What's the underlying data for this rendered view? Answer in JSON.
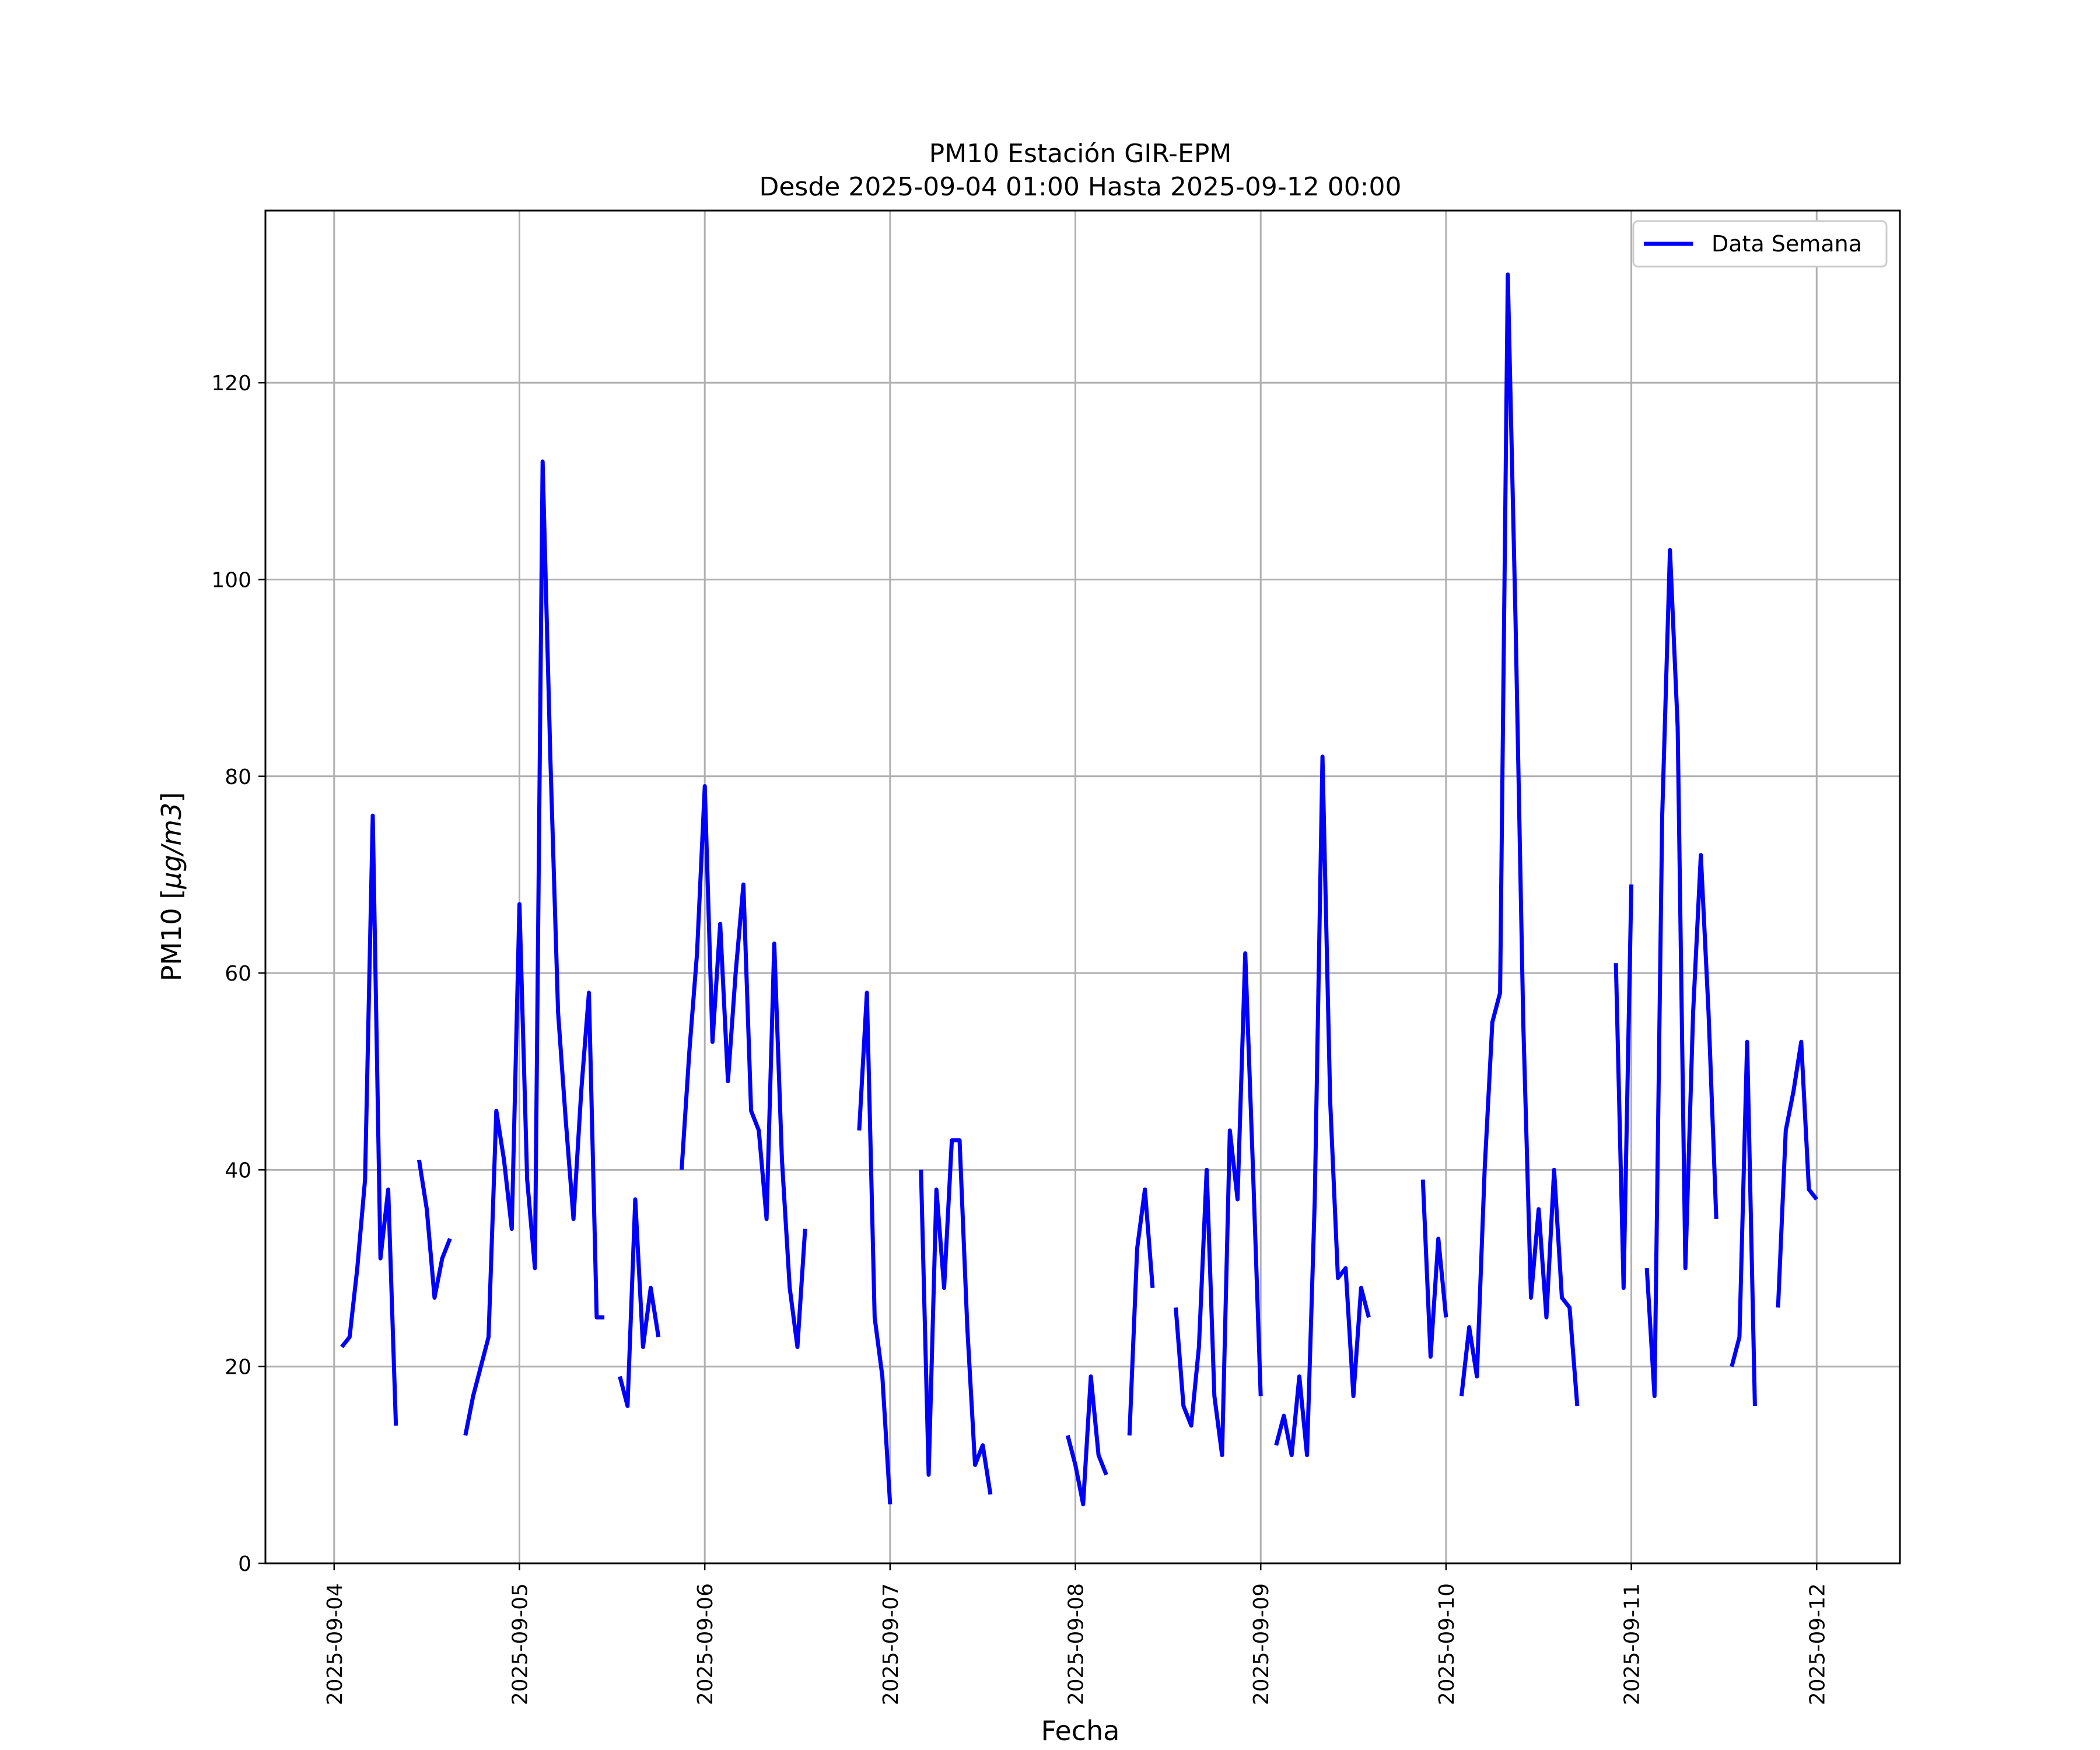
{
  "chart_data": {
    "type": "line",
    "title": "PM10 Estación GIR-EPM",
    "subtitle": "Desde 2025-09-04 01:00 Hasta 2025-09-12 00:00",
    "xlabel": "Fecha",
    "ylabel_main": "PM10 [",
    "ylabel_unit": "μg/m3",
    "ylabel_close": "]",
    "x_ticks": [
      "2025-09-04",
      "2025-09-05",
      "2025-09-06",
      "2025-09-07",
      "2025-09-08",
      "2025-09-09",
      "2025-09-10",
      "2025-09-11",
      "2025-09-12"
    ],
    "y_ticks": [
      0,
      20,
      40,
      60,
      80,
      100,
      120
    ],
    "xlim": [
      "2025-09-03 15:06",
      "2025-09-12 10:47"
    ],
    "ylim": [
      0,
      137.5
    ],
    "grid": true,
    "legend_position": "top-right",
    "series": [
      {
        "name": "Data Semana",
        "color": "#0000ff",
        "segments": [
          [
            [
              "2025-09-04 01:00",
              22
            ],
            [
              "2025-09-04 02:00",
              23
            ],
            [
              "2025-09-04 03:00",
              30
            ],
            [
              "2025-09-04 04:00",
              39
            ],
            [
              "2025-09-04 05:00",
              76
            ],
            [
              "2025-09-04 06:00",
              31
            ],
            [
              "2025-09-04 07:00",
              38
            ],
            [
              "2025-09-04 08:00",
              14
            ]
          ],
          [
            [
              "2025-09-04 11:00",
              41
            ],
            [
              "2025-09-04 12:00",
              36
            ],
            [
              "2025-09-04 13:00",
              27
            ],
            [
              "2025-09-04 14:00",
              31
            ],
            [
              "2025-09-04 15:00",
              33
            ]
          ],
          [
            [
              "2025-09-04 17:00",
              13
            ],
            [
              "2025-09-04 18:00",
              17
            ],
            [
              "2025-09-04 19:00",
              20
            ],
            [
              "2025-09-04 20:00",
              23
            ],
            [
              "2025-09-04 21:00",
              46
            ],
            [
              "2025-09-04 22:00",
              41
            ],
            [
              "2025-09-04 23:00",
              34
            ],
            [
              "2025-09-05 00:00",
              67
            ],
            [
              "2025-09-05 01:00",
              39
            ],
            [
              "2025-09-05 02:00",
              30
            ],
            [
              "2025-09-05 03:00",
              112
            ],
            [
              "2025-09-05 04:00",
              82
            ],
            [
              "2025-09-05 05:00",
              56
            ],
            [
              "2025-09-05 06:00",
              45
            ],
            [
              "2025-09-05 07:00",
              35
            ],
            [
              "2025-09-05 08:00",
              48
            ],
            [
              "2025-09-05 09:00",
              58
            ],
            [
              "2025-09-05 10:00",
              25
            ],
            [
              "2025-09-05 11:00",
              25
            ]
          ],
          [
            [
              "2025-09-05 13:00",
              19
            ],
            [
              "2025-09-05 14:00",
              16
            ],
            [
              "2025-09-05 15:00",
              37
            ],
            [
              "2025-09-05 16:00",
              22
            ],
            [
              "2025-09-05 17:00",
              28
            ],
            [
              "2025-09-05 18:00",
              23
            ]
          ],
          [
            [
              "2025-09-05 21:00",
              40
            ],
            [
              "2025-09-05 22:00",
              52
            ],
            [
              "2025-09-05 23:00",
              62
            ],
            [
              "2025-09-06 00:00",
              79
            ],
            [
              "2025-09-06 01:00",
              53
            ],
            [
              "2025-09-06 02:00",
              65
            ],
            [
              "2025-09-06 03:00",
              49
            ],
            [
              "2025-09-06 04:00",
              60
            ],
            [
              "2025-09-06 05:00",
              69
            ],
            [
              "2025-09-06 06:00",
              46
            ],
            [
              "2025-09-06 07:00",
              44
            ],
            [
              "2025-09-06 08:00",
              35
            ],
            [
              "2025-09-06 09:00",
              63
            ],
            [
              "2025-09-06 10:00",
              41
            ],
            [
              "2025-09-06 11:00",
              28
            ],
            [
              "2025-09-06 12:00",
              22
            ],
            [
              "2025-09-06 13:00",
              34
            ]
          ],
          [
            [
              "2025-09-06 20:00",
              44
            ],
            [
              "2025-09-06 21:00",
              58
            ],
            [
              "2025-09-06 22:00",
              25
            ],
            [
              "2025-09-06 23:00",
              19
            ],
            [
              "2025-09-07 00:00",
              6
            ]
          ],
          [
            [
              "2025-09-07 04:00",
              40
            ],
            [
              "2025-09-07 05:00",
              9
            ],
            [
              "2025-09-07 06:00",
              38
            ],
            [
              "2025-09-07 07:00",
              28
            ],
            [
              "2025-09-07 08:00",
              43
            ],
            [
              "2025-09-07 09:00",
              43
            ],
            [
              "2025-09-07 10:00",
              24
            ],
            [
              "2025-09-07 11:00",
              10
            ],
            [
              "2025-09-07 12:00",
              12
            ],
            [
              "2025-09-07 13:00",
              7
            ]
          ],
          [
            [
              "2025-09-07 23:00",
              13
            ],
            [
              "2025-09-08 00:00",
              10
            ],
            [
              "2025-09-08 01:00",
              6
            ],
            [
              "2025-09-08 02:00",
              19
            ],
            [
              "2025-09-08 03:00",
              11
            ],
            [
              "2025-09-08 04:00",
              9
            ]
          ],
          [
            [
              "2025-09-08 07:00",
              13
            ],
            [
              "2025-09-08 08:00",
              32
            ],
            [
              "2025-09-08 09:00",
              38
            ],
            [
              "2025-09-08 10:00",
              28
            ]
          ],
          [
            [
              "2025-09-08 13:00",
              26
            ],
            [
              "2025-09-08 14:00",
              16
            ],
            [
              "2025-09-08 15:00",
              14
            ],
            [
              "2025-09-08 16:00",
              22
            ],
            [
              "2025-09-08 17:00",
              40
            ],
            [
              "2025-09-08 18:00",
              17
            ],
            [
              "2025-09-08 19:00",
              11
            ],
            [
              "2025-09-08 20:00",
              44
            ],
            [
              "2025-09-08 21:00",
              37
            ],
            [
              "2025-09-08 22:00",
              62
            ],
            [
              "2025-09-08 23:00",
              40
            ],
            [
              "2025-09-09 00:00",
              17
            ]
          ],
          [
            [
              "2025-09-09 02:00",
              12
            ],
            [
              "2025-09-09 03:00",
              15
            ],
            [
              "2025-09-09 04:00",
              11
            ],
            [
              "2025-09-09 05:00",
              19
            ],
            [
              "2025-09-09 06:00",
              11
            ],
            [
              "2025-09-09 07:00",
              37
            ],
            [
              "2025-09-09 08:00",
              82
            ],
            [
              "2025-09-09 09:00",
              47
            ],
            [
              "2025-09-09 10:00",
              29
            ],
            [
              "2025-09-09 11:00",
              30
            ],
            [
              "2025-09-09 12:00",
              17
            ],
            [
              "2025-09-09 13:00",
              28
            ],
            [
              "2025-09-09 14:00",
              25
            ]
          ],
          [
            [
              "2025-09-09 21:00",
              39
            ],
            [
              "2025-09-09 22:00",
              21
            ],
            [
              "2025-09-09 23:00",
              33
            ],
            [
              "2025-09-10 00:00",
              25
            ]
          ],
          [
            [
              "2025-09-10 02:00",
              17
            ],
            [
              "2025-09-10 03:00",
              24
            ],
            [
              "2025-09-10 04:00",
              19
            ],
            [
              "2025-09-10 05:00",
              40
            ],
            [
              "2025-09-10 06:00",
              55
            ],
            [
              "2025-09-10 07:00",
              58
            ],
            [
              "2025-09-10 08:00",
              131
            ],
            [
              "2025-09-10 09:00",
              96
            ],
            [
              "2025-09-10 10:00",
              55
            ],
            [
              "2025-09-10 11:00",
              27
            ],
            [
              "2025-09-10 12:00",
              36
            ],
            [
              "2025-09-10 13:00",
              25
            ],
            [
              "2025-09-10 14:00",
              40
            ],
            [
              "2025-09-10 15:00",
              27
            ],
            [
              "2025-09-10 16:00",
              26
            ],
            [
              "2025-09-10 17:00",
              16
            ]
          ],
          [
            [
              "2025-09-10 22:00",
              61
            ],
            [
              "2025-09-10 23:00",
              28
            ],
            [
              "2025-09-11 00:00",
              69
            ]
          ],
          [
            [
              "2025-09-11 02:00",
              30
            ],
            [
              "2025-09-11 03:00",
              17
            ],
            [
              "2025-09-11 04:00",
              76
            ],
            [
              "2025-09-11 05:00",
              103
            ],
            [
              "2025-09-11 06:00",
              85
            ],
            [
              "2025-09-11 07:00",
              30
            ],
            [
              "2025-09-11 08:00",
              56
            ],
            [
              "2025-09-11 09:00",
              72
            ],
            [
              "2025-09-11 10:00",
              56
            ],
            [
              "2025-09-11 11:00",
              35
            ]
          ],
          [
            [
              "2025-09-11 13:00",
              20
            ],
            [
              "2025-09-11 14:00",
              23
            ],
            [
              "2025-09-11 15:00",
              53
            ],
            [
              "2025-09-11 16:00",
              16
            ]
          ],
          [
            [
              "2025-09-11 19:00",
              26
            ],
            [
              "2025-09-11 20:00",
              44
            ],
            [
              "2025-09-11 21:00",
              48
            ],
            [
              "2025-09-11 22:00",
              53
            ],
            [
              "2025-09-11 23:00",
              38
            ],
            [
              "2025-09-12 00:00",
              37
            ]
          ]
        ]
      }
    ]
  }
}
